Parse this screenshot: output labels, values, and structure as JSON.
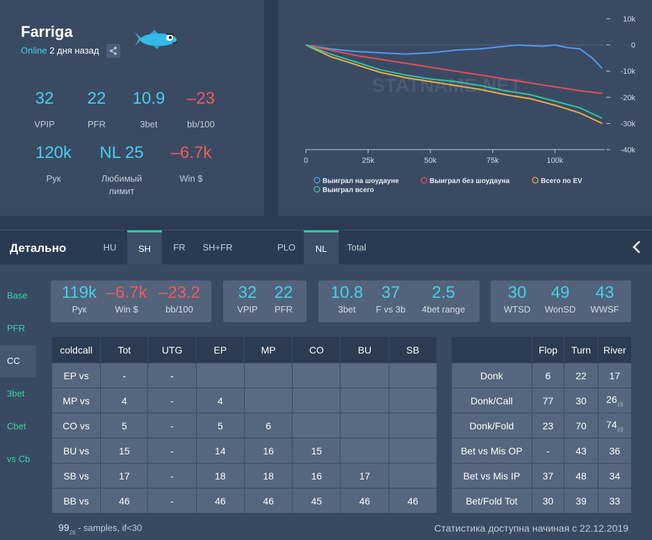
{
  "profile": {
    "name": "Farriga",
    "status_online": "Online",
    "status_when": "2 дня назад",
    "stats_row1": [
      {
        "value": "32",
        "label": "VPIP",
        "color": "cyan"
      },
      {
        "value": "22",
        "label": "PFR",
        "color": "cyan"
      },
      {
        "value": "10.9",
        "label": "3bet",
        "color": "cyan"
      },
      {
        "value": "–23",
        "label": "bb/100",
        "color": "red"
      }
    ],
    "stats_row2": [
      {
        "value": "120k",
        "label": "Рук",
        "color": "cyan"
      },
      {
        "value": "NL 25",
        "label": "Любимый лимит",
        "color": "cyan"
      },
      {
        "value": "–6.7k",
        "label": "Win $",
        "color": "red"
      }
    ]
  },
  "chart_data": {
    "type": "line",
    "watermark": "STATNAME.NET",
    "x_ticks": [
      "0",
      "25k",
      "50k",
      "75k",
      "100k"
    ],
    "y_ticks": [
      "10k",
      "0",
      "-10k",
      "-20k",
      "-30k",
      "-40k"
    ],
    "xlim": [
      0,
      120000
    ],
    "ylim": [
      -40000,
      10000
    ],
    "series": [
      {
        "name": "Выиграл на шоудауне",
        "color": "#4a9ff0",
        "x": [
          0,
          10000,
          20000,
          30000,
          40000,
          50000,
          60000,
          70000,
          80000,
          85000,
          95000,
          100000,
          105000,
          110000,
          115000,
          119000
        ],
        "y": [
          0,
          -1500,
          -2500,
          -3000,
          -3500,
          -3000,
          -2000,
          -1500,
          -500,
          0,
          -500,
          0,
          -1000,
          -1500,
          -5000,
          -9000
        ]
      },
      {
        "name": "Выиграл без шоудауна",
        "color": "#e85050",
        "x": [
          0,
          10000,
          20000,
          30000,
          40000,
          50000,
          60000,
          70000,
          80000,
          90000,
          100000,
          110000,
          119000
        ],
        "y": [
          0,
          -2000,
          -4000,
          -5500,
          -7000,
          -8500,
          -10000,
          -11500,
          -13000,
          -14500,
          -16000,
          -17500,
          -18500
        ]
      },
      {
        "name": "Всего по EV",
        "color": "#f0b040",
        "x": [
          0,
          10000,
          20000,
          30000,
          40000,
          50000,
          60000,
          70000,
          80000,
          90000,
          100000,
          110000,
          119000
        ],
        "y": [
          0,
          -4500,
          -7500,
          -10500,
          -12500,
          -14000,
          -15500,
          -17000,
          -19000,
          -20500,
          -23000,
          -26000,
          -30000
        ]
      },
      {
        "name": "Выиграл всего",
        "color": "#30c8a0",
        "x": [
          0,
          10000,
          20000,
          30000,
          40000,
          50000,
          60000,
          70000,
          80000,
          90000,
          100000,
          110000,
          119000
        ],
        "y": [
          0,
          -3500,
          -6500,
          -9500,
          -11500,
          -13000,
          -14000,
          -15500,
          -17500,
          -19000,
          -21500,
          -24000,
          -28000
        ]
      }
    ]
  },
  "detail": {
    "title": "Детально",
    "tabs": [
      "HU",
      "SH",
      "FR",
      "SH+FR",
      "PLO",
      "NL",
      "Total"
    ],
    "side": [
      "Base",
      "PFR",
      "CC",
      "3bet",
      "Cbet",
      "vs Cb"
    ],
    "box1": [
      {
        "value": "119k",
        "label": "Рук",
        "color": "cyan"
      },
      {
        "value": "–6.7k",
        "label": "Win $",
        "color": "red"
      },
      {
        "value": "–23.2",
        "label": "bb/100",
        "color": "red"
      }
    ],
    "box2": [
      {
        "value": "32",
        "label": "VPIP",
        "color": "cyan"
      },
      {
        "value": "22",
        "label": "PFR",
        "color": "cyan"
      }
    ],
    "box3": [
      {
        "value": "10.8",
        "label": "3bet",
        "color": "cyan"
      },
      {
        "value": "37",
        "label": "F vs 3b",
        "color": "cyan"
      },
      {
        "value": "2.5",
        "label": "4bet range",
        "color": "cyan"
      }
    ],
    "box4": [
      {
        "value": "30",
        "label": "WTSD",
        "color": "cyan"
      },
      {
        "value": "49",
        "label": "WonSD",
        "color": "cyan"
      },
      {
        "value": "43",
        "label": "WWSF",
        "color": "cyan"
      }
    ]
  },
  "coldcall_table": {
    "headers": [
      "coldcall",
      "Tot",
      "UTG",
      "EP",
      "MP",
      "CO",
      "BU",
      "SB"
    ],
    "rows": [
      [
        "EP vs",
        "-",
        "-",
        "",
        "",
        "",
        "",
        ""
      ],
      [
        "MP vs",
        "4",
        "-",
        "4",
        "",
        "",
        "",
        ""
      ],
      [
        "CO vs",
        "5",
        "-",
        "5",
        "6",
        "",
        "",
        ""
      ],
      [
        "BU vs",
        "15",
        "-",
        "14",
        "16",
        "15",
        "",
        ""
      ],
      [
        "SB vs",
        "17",
        "-",
        "18",
        "18",
        "16",
        "17",
        ""
      ],
      [
        "BB vs",
        "46",
        "-",
        "46",
        "46",
        "45",
        "46",
        "46"
      ]
    ]
  },
  "postflop_table": {
    "headers": [
      "",
      "Flop",
      "Turn",
      "River"
    ],
    "rows": [
      [
        "Donk",
        "6",
        "22",
        "17"
      ],
      [
        "Donk/Call",
        "77",
        "30",
        "26"
      ],
      [
        "Donk/Fold",
        "23",
        "70",
        "74"
      ],
      [
        "Bet vs Mis OP",
        "-",
        "43",
        "36"
      ],
      [
        "Bet vs Mis IP",
        "37",
        "48",
        "34"
      ],
      [
        "Bet/Fold Tot",
        "30",
        "39",
        "33"
      ]
    ],
    "subscripts": {
      "1-3": "19",
      "2-3": "19"
    }
  },
  "footer": {
    "sample_num": "99",
    "sample_sub": "29",
    "sample_text": " - samples, if<30",
    "since": "Статистика доступна начиная с 22.12.2019"
  }
}
